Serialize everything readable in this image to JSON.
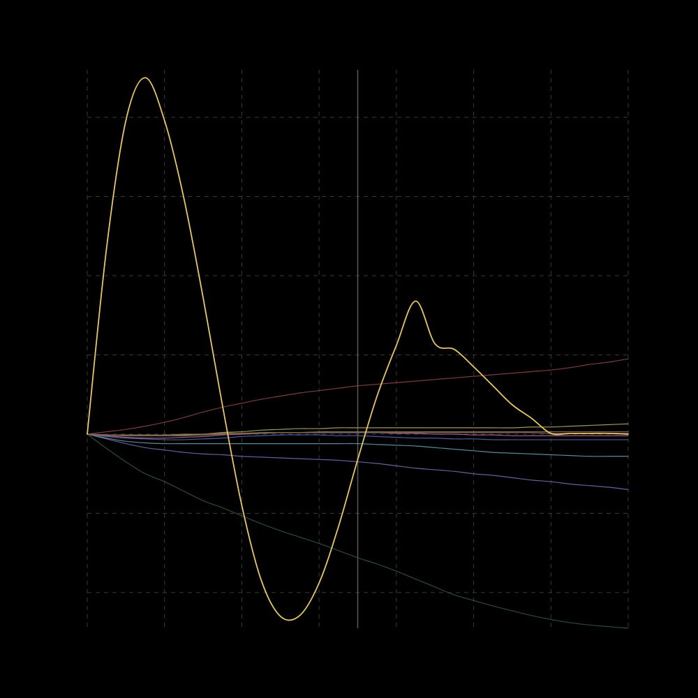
{
  "theme": {
    "background": "#000000",
    "grid_color": "#3a3a3a",
    "zero_line_color": "#5a5a5a"
  },
  "chart_data": {
    "type": "line",
    "title": "",
    "xlabel": "",
    "ylabel": "",
    "xlim": [
      0,
      7
    ],
    "ylim": [
      -2.45,
      4.6
    ],
    "grid": true,
    "legend": "none",
    "vertical_reference_x": 3.5,
    "x": [
      0,
      0.25,
      0.5,
      0.75,
      1,
      1.25,
      1.5,
      1.75,
      2,
      2.25,
      2.5,
      2.75,
      3,
      3.25,
      3.5,
      3.75,
      4,
      4.25,
      4.5,
      4.75,
      5,
      5.25,
      5.5,
      5.75,
      6,
      6.25,
      6.5,
      6.75,
      7
    ],
    "series": [
      {
        "color": "#e8c76a",
        "width": 1.8,
        "values": [
          0,
          2.35,
          3.96,
          4.5,
          3.96,
          2.98,
          1.72,
          0.36,
          -0.9,
          -1.84,
          -2.3,
          -2.29,
          -1.88,
          -1.17,
          -0.32,
          0.48,
          1.12,
          1.68,
          1.14,
          1.07,
          0.85,
          0.61,
          0.37,
          0.2,
          0.01,
          0.01,
          0.01,
          0.01,
          0.0
        ]
      },
      {
        "color": "#7a3e3e",
        "width": 1.2,
        "values": [
          0,
          0.03,
          0.06,
          0.1,
          0.15,
          0.21,
          0.28,
          0.34,
          0.39,
          0.44,
          0.48,
          0.52,
          0.55,
          0.58,
          0.61,
          0.63,
          0.65,
          0.67,
          0.69,
          0.71,
          0.73,
          0.75,
          0.77,
          0.79,
          0.81,
          0.84,
          0.88,
          0.91,
          0.95
        ]
      },
      {
        "color": "#2f4a3a",
        "width": 1.2,
        "values": [
          0,
          -0.18,
          -0.35,
          -0.5,
          -0.6,
          -0.72,
          -0.84,
          -0.93,
          -1.03,
          -1.13,
          -1.22,
          -1.3,
          -1.38,
          -1.47,
          -1.56,
          -1.64,
          -1.73,
          -1.83,
          -1.93,
          -2.03,
          -2.1,
          -2.17,
          -2.23,
          -2.29,
          -2.34,
          -2.38,
          -2.41,
          -2.43,
          -2.45
        ]
      },
      {
        "color": "#6a5f9a",
        "width": 1.2,
        "values": [
          0,
          -0.06,
          -0.12,
          -0.17,
          -0.2,
          -0.23,
          -0.25,
          -0.26,
          -0.28,
          -0.29,
          -0.3,
          -0.31,
          -0.32,
          -0.33,
          -0.35,
          -0.37,
          -0.4,
          -0.43,
          -0.45,
          -0.47,
          -0.5,
          -0.52,
          -0.55,
          -0.58,
          -0.6,
          -0.63,
          -0.65,
          -0.67,
          -0.7
        ]
      },
      {
        "color": "#5a8a9a",
        "width": 1.2,
        "values": [
          0,
          -0.05,
          -0.09,
          -0.11,
          -0.12,
          -0.12,
          -0.12,
          -0.12,
          -0.12,
          -0.12,
          -0.12,
          -0.12,
          -0.12,
          -0.12,
          -0.12,
          -0.13,
          -0.14,
          -0.15,
          -0.17,
          -0.19,
          -0.21,
          -0.23,
          -0.24,
          -0.25,
          -0.26,
          -0.27,
          -0.28,
          -0.28,
          -0.28
        ]
      },
      {
        "color": "#9a9a5a",
        "width": 1.2,
        "values": [
          0,
          -0.01,
          -0.02,
          -0.02,
          -0.02,
          -0.01,
          0.0,
          0.02,
          0.03,
          0.05,
          0.06,
          0.07,
          0.07,
          0.08,
          0.08,
          0.08,
          0.08,
          0.08,
          0.08,
          0.08,
          0.08,
          0.08,
          0.08,
          0.09,
          0.09,
          0.1,
          0.11,
          0.12,
          0.13
        ]
      },
      {
        "color": "#4a5a9a",
        "width": 1.2,
        "values": [
          0,
          -0.03,
          -0.05,
          -0.06,
          -0.07,
          -0.07,
          -0.06,
          -0.05,
          -0.03,
          -0.02,
          -0.01,
          -0.01,
          -0.01,
          -0.02,
          -0.02,
          -0.03,
          -0.04,
          -0.05,
          -0.05,
          -0.06,
          -0.06,
          -0.07,
          -0.07,
          -0.07,
          -0.07,
          -0.07,
          -0.07,
          -0.07,
          -0.07
        ]
      },
      {
        "color": "#b05a7a",
        "width": 1.2,
        "values": [
          0,
          -0.02,
          -0.04,
          -0.05,
          -0.05,
          -0.04,
          -0.03,
          -0.01,
          0.0,
          0.01,
          0.02,
          0.02,
          0.02,
          0.02,
          0.02,
          0.02,
          0.01,
          0.01,
          0.0,
          0.0,
          -0.01,
          -0.01,
          -0.02,
          -0.02,
          -0.02,
          -0.02,
          -0.02,
          -0.02,
          -0.02
        ]
      },
      {
        "color": "#6a6a6a",
        "width": 1.2,
        "values": [
          0,
          -0.01,
          -0.02,
          -0.02,
          -0.02,
          -0.02,
          -0.01,
          0.0,
          0.01,
          0.01,
          0.02,
          0.02,
          0.02,
          0.02,
          0.02,
          0.02,
          0.02,
          0.02,
          0.02,
          0.02,
          0.02,
          0.02,
          0.02,
          0.02,
          0.01,
          0.01,
          0.01,
          0.01,
          0.01
        ]
      },
      {
        "color": "#8a6a4a",
        "width": 1.2,
        "values": [
          0,
          -0.01,
          -0.01,
          -0.01,
          -0.01,
          0.0,
          0.0,
          0.01,
          0.01,
          0.02,
          0.02,
          0.02,
          0.03,
          0.03,
          0.03,
          0.03,
          0.03,
          0.03,
          0.03,
          0.03,
          0.03,
          0.03,
          0.03,
          0.03,
          0.03,
          0.03,
          0.03,
          0.03,
          0.03
        ]
      }
    ]
  }
}
